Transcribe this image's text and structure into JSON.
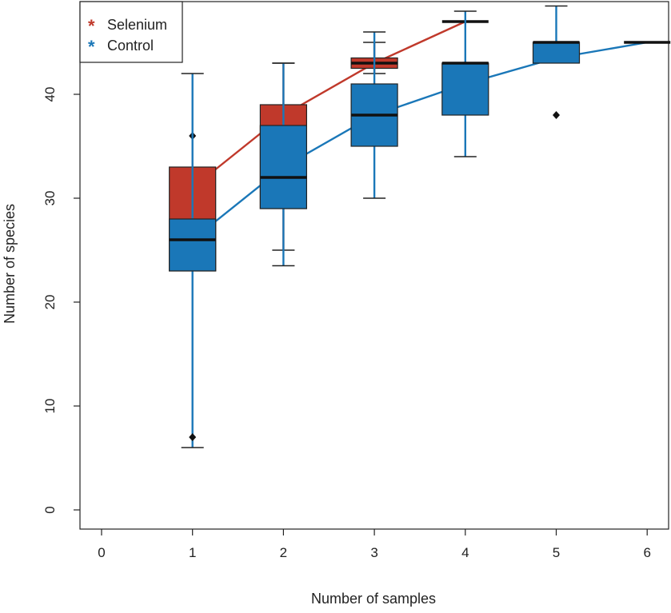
{
  "chart_data": {
    "type": "boxplot",
    "title": "",
    "xlabel": "Number of samples",
    "ylabel": "Number of  species",
    "xlim": [
      -0.25,
      6.25
    ],
    "ylim": [
      -2,
      48.5
    ],
    "x_ticks": [
      "0",
      "1",
      "2",
      "3",
      "4",
      "5",
      "6"
    ],
    "y_ticks": [
      "0",
      "10",
      "20",
      "30",
      "40"
    ],
    "legend": {
      "position": "top-left",
      "entries": [
        {
          "label": "Selenium",
          "color": "#c0392b",
          "symbol": "*"
        },
        {
          "label": "Control",
          "color": "#1a77b8",
          "symbol": "*"
        }
      ]
    },
    "series": [
      {
        "name": "Selenium",
        "color": "#c0392b",
        "boxes": [
          {
            "x": 1,
            "q1": 23,
            "median": 26,
            "q3": 33,
            "whisker_low": 23,
            "whisker_high": 33,
            "outliers": [
              36
            ]
          },
          {
            "x": 2,
            "q1": 29,
            "median": 32,
            "q3": 39,
            "whisker_low": 25,
            "whisker_high": 43,
            "outliers": []
          },
          {
            "x": 3,
            "q1": 42.5,
            "median": 43,
            "q3": 43.5,
            "whisker_low": 42,
            "whisker_high": 45,
            "outliers": []
          },
          {
            "x": 4,
            "q1": 47,
            "median": 47,
            "q3": 47,
            "whisker_low": 47,
            "whisker_high": 47,
            "outliers": []
          }
        ],
        "curve": [
          [
            1,
            31
          ],
          [
            2,
            38
          ],
          [
            3,
            43
          ],
          [
            4,
            47
          ]
        ]
      },
      {
        "name": "Control",
        "color": "#1a77b8",
        "boxes": [
          {
            "x": 1,
            "q1": 23,
            "median": 26,
            "q3": 28,
            "whisker_low": 6,
            "whisker_high": 42,
            "outliers": [
              7
            ]
          },
          {
            "x": 2,
            "q1": 29,
            "median": 32,
            "q3": 37,
            "whisker_low": 23.5,
            "whisker_high": 43,
            "outliers": []
          },
          {
            "x": 3,
            "q1": 35,
            "median": 38,
            "q3": 41,
            "whisker_low": 30,
            "whisker_high": 46,
            "outliers": []
          },
          {
            "x": 4,
            "q1": 38,
            "median": 43,
            "q3": 43,
            "whisker_low": 34,
            "whisker_high": 48,
            "outliers": []
          },
          {
            "x": 5,
            "q1": 43,
            "median": 45,
            "q3": 45,
            "whisker_low": 43,
            "whisker_high": 48.5,
            "outliers": [
              38
            ]
          },
          {
            "x": 6,
            "q1": 45,
            "median": 45,
            "q3": 45,
            "whisker_low": 45,
            "whisker_high": 45,
            "outliers": []
          }
        ],
        "curve": [
          [
            1,
            26
          ],
          [
            2,
            33
          ],
          [
            3,
            38
          ],
          [
            4,
            41
          ],
          [
            5,
            43.5
          ],
          [
            6,
            45
          ]
        ]
      }
    ]
  }
}
